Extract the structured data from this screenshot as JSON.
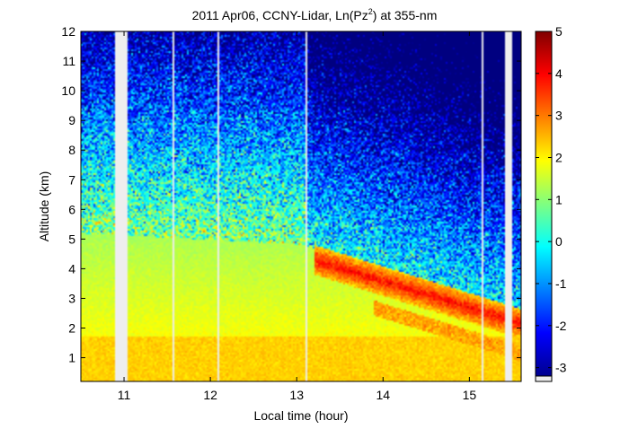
{
  "chart_data": {
    "type": "heatmap",
    "title": "2011 Apr06, CCNY-Lidar, Ln(Pz",
    "title_sup": "2",
    "title_suffix": ") at 355-nm",
    "xlabel": "Local time (hour)",
    "ylabel": "Altitude (km)",
    "xlim": [
      10.5,
      15.6
    ],
    "ylim": [
      0.2,
      12
    ],
    "x_ticks": [
      11,
      12,
      13,
      14,
      15
    ],
    "y_ticks": [
      1,
      2,
      3,
      4,
      5,
      6,
      7,
      8,
      9,
      10,
      11,
      12
    ],
    "colorbar": {
      "range": [
        -3.2,
        5
      ],
      "ticks": [
        -3,
        -2,
        -1,
        0,
        1,
        2,
        3,
        4,
        5
      ],
      "colormap": "jet"
    },
    "data_gaps_hours": [
      10.93,
      10.95,
      11.57,
      12.1,
      13.12,
      15.15,
      15.42,
      15.44,
      15.46
    ],
    "grid": false,
    "legend": "colorbar-right"
  }
}
